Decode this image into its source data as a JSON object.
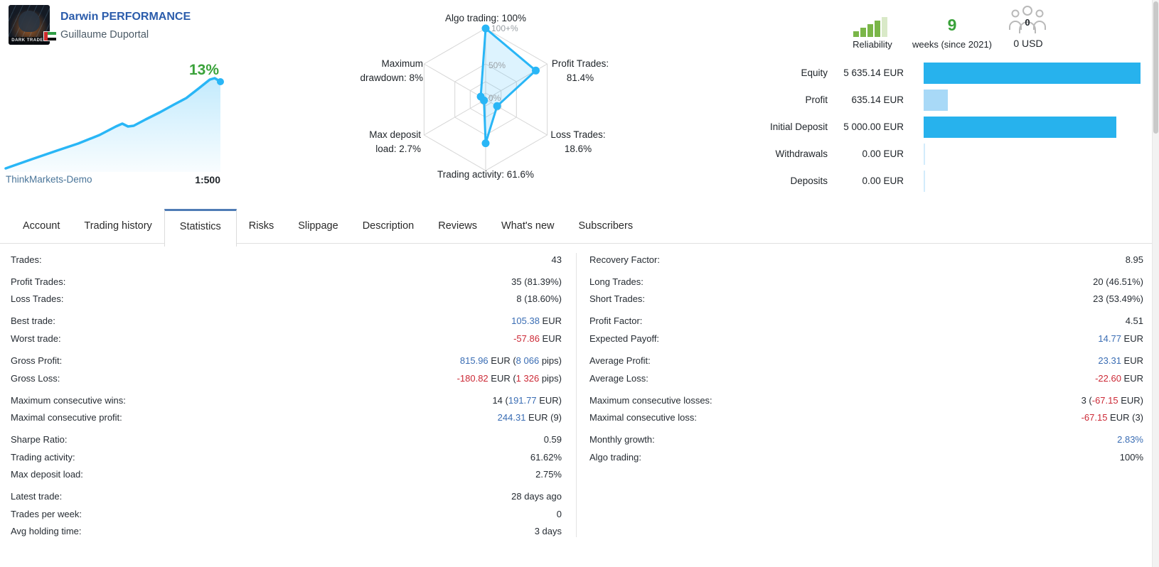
{
  "header": {
    "title": "Darwin PERFORMANCE",
    "author": "Guillaume Duportal",
    "avatar_caption": "DARK TRADER",
    "broker": "ThinkMarkets-Demo",
    "leverage": "1:500"
  },
  "charts": {
    "growth": {
      "type": "area",
      "percent_label": "13%"
    },
    "radar": {
      "type": "radar",
      "scale_labels": [
        "100+%",
        "50%",
        "0%"
      ],
      "axes": [
        {
          "name": "Algo trading",
          "value": 100,
          "display": "Algo trading: 100%"
        },
        {
          "name": "Profit Trades",
          "value": 81.4,
          "display": "Profit Trades:\n81.4%"
        },
        {
          "name": "Loss Trades",
          "value": 18.6,
          "display": "Loss Trades:\n18.6%"
        },
        {
          "name": "Trading activity",
          "value": 61.6,
          "display": "Trading activity: 61.6%"
        },
        {
          "name": "Max deposit load",
          "value": 2.7,
          "display": "Max deposit\nload: 2.7%"
        },
        {
          "name": "Maximum drawdown",
          "value": 8,
          "display": "Maximum\ndrawdown: 8%"
        }
      ]
    },
    "balance_bars": {
      "type": "bar",
      "categories": [
        "Equity",
        "Profit",
        "Initial Deposit",
        "Withdrawals",
        "Deposits"
      ],
      "values": [
        5635.14,
        635.14,
        5000.0,
        0.0,
        0.0
      ],
      "unit": "EUR"
    }
  },
  "widgets": {
    "reliability": {
      "label": "Reliability"
    },
    "age": {
      "count": "9",
      "caption": "weeks (since 2021)"
    },
    "funds": {
      "badge": "0",
      "amount": "0 USD"
    }
  },
  "balance": {
    "rows": [
      {
        "label": "Equity",
        "value": "5 635.14 EUR",
        "amount": 5635.14,
        "tone": "solid"
      },
      {
        "label": "Profit",
        "value": "635.14 EUR",
        "amount": 635.14,
        "tone": "light"
      },
      {
        "label": "Initial Deposit",
        "value": "5 000.00 EUR",
        "amount": 5000.0,
        "tone": "solid"
      },
      {
        "label": "Withdrawals",
        "value": "0.00 EUR",
        "amount": 0,
        "tone": "faint"
      },
      {
        "label": "Deposits",
        "value": "0.00 EUR",
        "amount": 0,
        "tone": "faint"
      }
    ]
  },
  "tabs": {
    "active": "Statistics",
    "items": [
      {
        "label": "Account"
      },
      {
        "label": "Trading history"
      },
      {
        "label": "Statistics"
      },
      {
        "label": "Risks"
      },
      {
        "label": "Slippage"
      },
      {
        "label": "Description"
      },
      {
        "label": "Reviews"
      },
      {
        "label": "What's new"
      },
      {
        "label": "Subscribers"
      }
    ]
  },
  "stats": {
    "left": [
      {
        "label": "Trades:",
        "gap": false,
        "value": [
          {
            "t": "43",
            "c": ""
          }
        ]
      },
      {
        "label": "Profit Trades:",
        "gap": true,
        "value": [
          {
            "t": "35 (81.39%)",
            "c": ""
          }
        ]
      },
      {
        "label": "Loss Trades:",
        "gap": false,
        "value": [
          {
            "t": "8 (18.60%)",
            "c": ""
          }
        ]
      },
      {
        "label": "Best trade:",
        "gap": true,
        "value": [
          {
            "t": "105.38",
            "c": "pos"
          },
          {
            "t": " EUR",
            "c": ""
          }
        ]
      },
      {
        "label": "Worst trade:",
        "gap": false,
        "value": [
          {
            "t": "-57.86",
            "c": "neg"
          },
          {
            "t": " EUR",
            "c": ""
          }
        ]
      },
      {
        "label": "Gross Profit:",
        "gap": true,
        "value": [
          {
            "t": "815.96",
            "c": "pos"
          },
          {
            "t": " EUR (",
            "c": ""
          },
          {
            "t": "8 066",
            "c": "pos"
          },
          {
            "t": " pips)",
            "c": ""
          }
        ]
      },
      {
        "label": "Gross Loss:",
        "gap": false,
        "value": [
          {
            "t": "-180.82",
            "c": "neg"
          },
          {
            "t": " EUR (",
            "c": ""
          },
          {
            "t": "1 326",
            "c": "neg"
          },
          {
            "t": " pips)",
            "c": ""
          }
        ]
      },
      {
        "label": "Maximum consecutive wins:",
        "gap": true,
        "value": [
          {
            "t": "14 (",
            "c": ""
          },
          {
            "t": "191.77",
            "c": "pos"
          },
          {
            "t": " EUR)",
            "c": ""
          }
        ]
      },
      {
        "label": "Maximal consecutive profit:",
        "gap": false,
        "value": [
          {
            "t": "244.31",
            "c": "pos"
          },
          {
            "t": " EUR (9)",
            "c": ""
          }
        ]
      },
      {
        "label": "Sharpe Ratio:",
        "gap": true,
        "value": [
          {
            "t": "0.59",
            "c": ""
          }
        ]
      },
      {
        "label": "Trading activity:",
        "gap": false,
        "value": [
          {
            "t": "61.62%",
            "c": ""
          }
        ]
      },
      {
        "label": "Max deposit load:",
        "gap": false,
        "value": [
          {
            "t": "2.75%",
            "c": ""
          }
        ]
      },
      {
        "label": "Latest trade:",
        "gap": true,
        "value": [
          {
            "t": "28 days ago",
            "c": ""
          }
        ]
      },
      {
        "label": "Trades per week:",
        "gap": false,
        "value": [
          {
            "t": "0",
            "c": ""
          }
        ]
      },
      {
        "label": "Avg holding time:",
        "gap": false,
        "value": [
          {
            "t": "3 days",
            "c": ""
          }
        ]
      }
    ],
    "right": [
      {
        "label": "Recovery Factor:",
        "gap": false,
        "value": [
          {
            "t": "8.95",
            "c": ""
          }
        ]
      },
      {
        "label": "Long Trades:",
        "gap": true,
        "value": [
          {
            "t": "20 (46.51%)",
            "c": ""
          }
        ]
      },
      {
        "label": "Short Trades:",
        "gap": false,
        "value": [
          {
            "t": "23 (53.49%)",
            "c": ""
          }
        ]
      },
      {
        "label": "Profit Factor:",
        "gap": true,
        "value": [
          {
            "t": "4.51",
            "c": ""
          }
        ]
      },
      {
        "label": "Expected Payoff:",
        "gap": false,
        "value": [
          {
            "t": "14.77",
            "c": "pos"
          },
          {
            "t": " EUR",
            "c": ""
          }
        ]
      },
      {
        "label": "Average Profit:",
        "gap": true,
        "value": [
          {
            "t": "23.31",
            "c": "pos"
          },
          {
            "t": " EUR",
            "c": ""
          }
        ]
      },
      {
        "label": "Average Loss:",
        "gap": false,
        "value": [
          {
            "t": "-22.60",
            "c": "neg"
          },
          {
            "t": " EUR",
            "c": ""
          }
        ]
      },
      {
        "label": "Maximum consecutive losses:",
        "gap": true,
        "value": [
          {
            "t": "3 (",
            "c": ""
          },
          {
            "t": "-67.15",
            "c": "neg"
          },
          {
            "t": " EUR)",
            "c": ""
          }
        ]
      },
      {
        "label": "Maximal consecutive loss:",
        "gap": false,
        "value": [
          {
            "t": "-67.15",
            "c": "neg"
          },
          {
            "t": " EUR (3)",
            "c": ""
          }
        ]
      },
      {
        "label": "Monthly growth:",
        "gap": true,
        "value": [
          {
            "t": "2.83%",
            "c": "pos"
          }
        ]
      },
      {
        "label": "Algo trading:",
        "gap": false,
        "value": [
          {
            "t": "100%",
            "c": ""
          }
        ]
      }
    ]
  },
  "colors": {
    "accent_blue": "#29b6f6",
    "bar_solid": "#27b2ed",
    "bar_light": "#a8d9f7",
    "bar_faint": "#d3ecfb",
    "positive": "#3a6db4",
    "negative": "#cc2936",
    "green": "#3aa23a",
    "reliability_green": "#7ab648",
    "title_blue": "#2b5cab",
    "active_tab_border": "#4f7cb5"
  }
}
